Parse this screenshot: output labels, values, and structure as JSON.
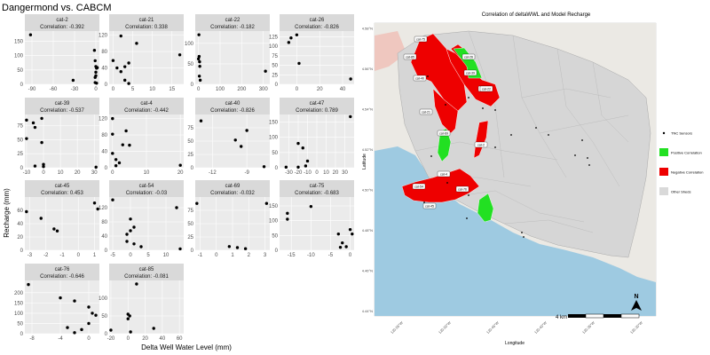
{
  "chart_data": [
    {
      "type": "scatter",
      "title": "Dangermond vs. CABCM",
      "xlabel": "Delta Well Water Level (mm)",
      "ylabel": "Recharge (mm)",
      "correlation_prefix": "Correlation: ",
      "panels": [
        {
          "name": "cat-2",
          "corr": "-0.392",
          "xlim": [
            -100,
            5
          ],
          "ylim": [
            0,
            185
          ],
          "xticks": [
            -90,
            -60,
            -30,
            0
          ],
          "yticks": [
            0,
            50,
            100,
            150
          ],
          "tick_labels_x": [
            "-90",
            "-60",
            "-30",
            "0"
          ],
          "tick_labels_y": [
            "0",
            "50",
            "100",
            "150"
          ],
          "points": [
            [
              -92,
              172
            ],
            [
              -32,
              14
            ],
            [
              -2,
              118
            ],
            [
              -1,
              82
            ],
            [
              0,
              62
            ],
            [
              1,
              56
            ],
            [
              0,
              42
            ],
            [
              -1,
              24
            ],
            [
              1,
              4
            ],
            [
              2,
              58
            ],
            [
              0,
              30
            ],
            [
              -1,
              6
            ]
          ]
        },
        {
          "name": "cat-21",
          "corr": "0.338",
          "xlim": [
            -1,
            18
          ],
          "ylim": [
            0,
            130
          ],
          "xticks": [
            0,
            5,
            10,
            15
          ],
          "yticks": [
            0,
            40,
            80,
            120
          ],
          "tick_labels_x": [
            "0",
            "5",
            "10",
            "15"
          ],
          "tick_labels_y": [
            "0",
            "40",
            "80",
            "120"
          ],
          "points": [
            [
              2,
              118
            ],
            [
              6,
              100
            ],
            [
              0,
              58
            ],
            [
              4,
              52
            ],
            [
              3,
              43
            ],
            [
              2,
              31
            ],
            [
              3,
              10
            ],
            [
              17,
              72
            ],
            [
              1,
              40
            ],
            [
              4,
              2
            ]
          ]
        },
        {
          "name": "cat-22",
          "corr": "-0.182",
          "xlim": [
            -15,
            330
          ],
          "ylim": [
            0,
            130
          ],
          "xticks": [
            0,
            100,
            200,
            300
          ],
          "yticks": [
            0,
            50,
            100
          ],
          "tick_labels_x": [
            "0",
            "100",
            "200",
            "300"
          ],
          "tick_labels_y": [
            "0",
            "50",
            "100"
          ],
          "points": [
            [
              2,
              121
            ],
            [
              3,
              68
            ],
            [
              5,
              55
            ],
            [
              6,
              44
            ],
            [
              4,
              20
            ],
            [
              310,
              32
            ],
            [
              8,
              10
            ],
            [
              0,
              62
            ]
          ]
        },
        {
          "name": "cat-26",
          "corr": "-0.826",
          "xlim": [
            -15,
            50
          ],
          "ylim": [
            0,
            140
          ],
          "xticks": [
            0,
            20,
            40
          ],
          "yticks": [
            0,
            25,
            50,
            75,
            100,
            125
          ],
          "tick_labels_x": [
            "0",
            "20",
            "40"
          ],
          "tick_labels_y": [
            "0",
            "25",
            "50",
            "75",
            "100",
            "125"
          ],
          "points": [
            [
              -7,
              110
            ],
            [
              -5,
              122
            ],
            [
              2,
              55
            ],
            [
              0,
              130
            ],
            [
              47,
              14
            ]
          ]
        },
        {
          "name": "cat-39",
          "corr": "-0.537",
          "xlim": [
            -11,
            33
          ],
          "ylim": [
            0,
            95
          ],
          "xticks": [
            -10,
            0,
            10,
            20,
            30
          ],
          "yticks": [
            0,
            25,
            50,
            75
          ],
          "tick_labels_x": [
            "-10",
            "0",
            "10",
            "20",
            "30"
          ],
          "tick_labels_y": [
            "0",
            "25",
            "50",
            "75"
          ],
          "points": [
            [
              -10,
              85
            ],
            [
              -6,
              80
            ],
            [
              -5,
              72
            ],
            [
              -10,
              52
            ],
            [
              -1,
              88
            ],
            [
              -1,
              45
            ],
            [
              -5,
              3
            ],
            [
              0,
              6
            ],
            [
              0,
              2
            ],
            [
              31,
              1
            ]
          ]
        },
        {
          "name": "cat-4",
          "corr": "-0.442",
          "xlim": [
            -1,
            21
          ],
          "ylim": [
            0,
            130
          ],
          "xticks": [
            0,
            10,
            20
          ],
          "yticks": [
            0,
            40,
            80,
            120
          ],
          "tick_labels_x": [
            "0",
            "10",
            "20"
          ],
          "tick_labels_y": [
            "0",
            "40",
            "80",
            "120"
          ],
          "points": [
            [
              0,
              120
            ],
            [
              0,
              82
            ],
            [
              4,
              90
            ],
            [
              3,
              56
            ],
            [
              5,
              55
            ],
            [
              0,
              35
            ],
            [
              1,
              20
            ],
            [
              2,
              12
            ],
            [
              1,
              5
            ],
            [
              20,
              6
            ]
          ]
        },
        {
          "name": "cat-40",
          "corr": "-0.826",
          "xlim": [
            -13.5,
            -7
          ],
          "ylim": [
            0,
            100
          ],
          "xticks": [
            -12,
            -9
          ],
          "yticks": [
            0,
            25,
            50,
            75
          ],
          "tick_labels_x": [
            "-12",
            "-9"
          ],
          "tick_labels_y": [
            "0",
            "25",
            "50",
            "75"
          ],
          "points": [
            [
              -13,
              88
            ],
            [
              -9,
              70
            ],
            [
              -10,
              52
            ],
            [
              -9.5,
              40
            ],
            [
              -7.5,
              2
            ]
          ]
        },
        {
          "name": "cat-47",
          "corr": "0.789",
          "xlim": [
            -40,
            40
          ],
          "ylim": [
            0,
            175
          ],
          "xticks": [
            -30,
            -20,
            -10,
            0,
            10,
            20,
            30
          ],
          "yticks": [
            0,
            50,
            100,
            150
          ],
          "tick_labels_x": [
            "-30",
            "-20",
            "-10",
            "0",
            "10",
            "20",
            "30"
          ],
          "tick_labels_y": [
            "0",
            "50",
            "100",
            "150"
          ],
          "points": [
            [
              -20,
              80
            ],
            [
              -15,
              65
            ],
            [
              -10,
              22
            ],
            [
              -12,
              6
            ],
            [
              -20,
              2
            ],
            [
              36,
              168
            ],
            [
              -33,
              2
            ]
          ]
        },
        {
          "name": "cat-45",
          "corr": "0.453",
          "xlim": [
            -3.3,
            1.3
          ],
          "ylim": [
            0,
            80
          ],
          "xticks": [
            -3,
            -2,
            -1,
            0,
            1
          ],
          "yticks": [
            0,
            20,
            40,
            60
          ],
          "tick_labels_x": [
            "-3",
            "-2",
            "-1",
            "0",
            "1"
          ],
          "tick_labels_y": [
            "0",
            "20",
            "40",
            "60"
          ],
          "points": [
            [
              -3.2,
              58
            ],
            [
              -2.3,
              48
            ],
            [
              -1.5,
              32
            ],
            [
              -1.3,
              29
            ],
            [
              1,
              71
            ],
            [
              1.2,
              62
            ]
          ]
        },
        {
          "name": "cat-54",
          "corr": "-0.03",
          "xlim": [
            -6,
            15
          ],
          "ylim": [
            0,
            150
          ],
          "xticks": [
            -5,
            0,
            5,
            10
          ],
          "yticks": [
            0,
            40,
            80,
            120
          ],
          "tick_labels_x": [
            "-5",
            "0",
            "5",
            "10"
          ],
          "tick_labels_y": [
            "0",
            "40",
            "80",
            "120"
          ],
          "points": [
            [
              -5,
              142
            ],
            [
              0,
              88
            ],
            [
              1,
              65
            ],
            [
              0,
              55
            ],
            [
              -1,
              25
            ],
            [
              1,
              18
            ],
            [
              -1,
              45
            ],
            [
              14,
              4
            ],
            [
              3,
              10
            ],
            [
              13,
              120
            ]
          ]
        },
        {
          "name": "cat-69",
          "corr": "-0.032",
          "xlim": [
            -1.3,
            3.3
          ],
          "ylim": [
            0,
            100
          ],
          "xticks": [
            -1,
            0,
            1,
            2,
            3
          ],
          "yticks": [
            0,
            25,
            50,
            75
          ],
          "tick_labels_x": [
            "-1",
            "0",
            "1",
            "2",
            "3"
          ],
          "tick_labels_y": [
            "0",
            "25",
            "50",
            "75"
          ],
          "points": [
            [
              -1.2,
              88
            ],
            [
              3.1,
              88
            ],
            [
              0.8,
              7
            ],
            [
              1.3,
              5
            ],
            [
              1.8,
              3
            ]
          ]
        },
        {
          "name": "cat-75",
          "corr": "-0.683",
          "xlim": [
            -18,
            1
          ],
          "ylim": [
            0,
            180
          ],
          "xticks": [
            -15,
            -10,
            -5,
            0
          ],
          "yticks": [
            0,
            50,
            100,
            150
          ],
          "tick_labels_x": [
            "-15",
            "-10",
            "-5",
            "0"
          ],
          "tick_labels_y": [
            "0",
            "50",
            "100",
            "150"
          ],
          "points": [
            [
              -16,
              105
            ],
            [
              -16,
              125
            ],
            [
              -10,
              148
            ],
            [
              -3,
              55
            ],
            [
              -2,
              25
            ],
            [
              -2.5,
              10
            ],
            [
              0,
              70
            ],
            [
              0.5,
              55
            ],
            [
              -1,
              12
            ]
          ]
        },
        {
          "name": "cat-76",
          "corr": "-0.646",
          "xlim": [
            -9,
            1.5
          ],
          "ylim": [
            0,
            260
          ],
          "xticks": [
            -8,
            -4,
            0
          ],
          "yticks": [
            0,
            50,
            100,
            150,
            200
          ],
          "tick_labels_x": [
            "-8",
            "-4",
            "0"
          ],
          "tick_labels_y": [
            "0",
            "50",
            "100",
            "150",
            "200"
          ],
          "points": [
            [
              -8.5,
              240
            ],
            [
              -4,
              175
            ],
            [
              -2,
              160
            ],
            [
              -3,
              30
            ],
            [
              0,
              130
            ],
            [
              1,
              90
            ],
            [
              0,
              50
            ],
            [
              -1,
              20
            ],
            [
              -2,
              5
            ],
            [
              0.5,
              100
            ]
          ]
        },
        {
          "name": "cat-85",
          "corr": "-0.081",
          "xlim": [
            -22,
            65
          ],
          "ylim": [
            0,
            150
          ],
          "xticks": [
            -20,
            0,
            20,
            40,
            60
          ],
          "yticks": [
            0,
            50,
            100
          ],
          "tick_labels_x": [
            "-20",
            "0",
            "20",
            "40",
            "60"
          ],
          "tick_labels_y": [
            "0",
            "50",
            "100"
          ],
          "points": [
            [
              -20,
              10
            ],
            [
              10,
              140
            ],
            [
              0,
              55
            ],
            [
              2,
              50
            ],
            [
              0,
              42
            ],
            [
              3,
              5
            ],
            [
              30,
              15
            ]
          ]
        }
      ]
    },
    {
      "type": "map",
      "title": "Correlation of deltaWWL and Model Recharge",
      "xlabel": "Longitude",
      "ylabel": "Latitude",
      "x_tick_labels": [
        "120.55°W",
        "120.50°W",
        "120.45°W",
        "120.40°W",
        "120.35°W",
        "120.30°W"
      ],
      "y_tick_labels": [
        "34.58°N",
        "34.56°N",
        "34.54°N",
        "34.52°N",
        "34.50°N",
        "34.48°N",
        "34.46°N",
        "34.44°N"
      ],
      "legend": [
        {
          "label": "TNC Sensors",
          "color": "#000000",
          "kind": "point"
        },
        {
          "label": "Positive Correlation",
          "color": "#22e022",
          "kind": "fill"
        },
        {
          "label": "Negative Correlation",
          "color": "#ee0000",
          "kind": "fill"
        },
        {
          "label": "Other Sheds",
          "color": "#d9d9d9",
          "kind": "fill"
        }
      ],
      "scale_label": "4 km",
      "north_label": "N",
      "catchment_labels": [
        {
          "name": "cat-75"
        },
        {
          "name": "cat-85"
        },
        {
          "name": "cat-26"
        },
        {
          "name": "cat-39"
        },
        {
          "name": "cat-47"
        },
        {
          "name": "cat-22"
        },
        {
          "name": "cat-40"
        },
        {
          "name": "cat-21"
        },
        {
          "name": "cat-69"
        },
        {
          "name": "cat-2"
        },
        {
          "name": "cat-4"
        },
        {
          "name": "cat-54"
        },
        {
          "name": "cat-76"
        },
        {
          "name": "cat-45"
        }
      ],
      "colors": {
        "land": "#d9d9d9",
        "sea": "#9ecae1",
        "negative": "#ee0000",
        "positive": "#22e022",
        "panel_strip": "#d9d9d9",
        "panel_bg": "#ebebeb"
      }
    }
  ]
}
